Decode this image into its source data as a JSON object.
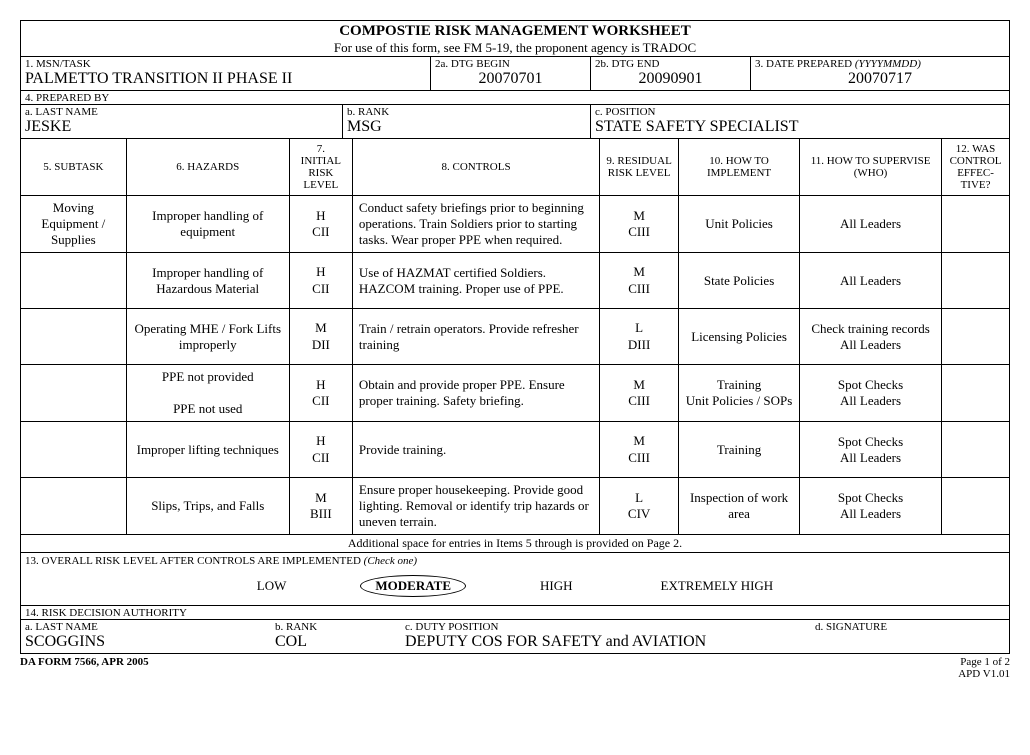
{
  "title": "COMPOSTIE RISK MANAGEMENT WORKSHEET",
  "subtitle": "For use of this form, see FM 5-19, the proponent agency is TRADOC",
  "fields": {
    "msn_label": "1. MSN/TASK",
    "msn_value": "PALMETTO TRANSITION II  PHASE II",
    "dtg_begin_label": "2a. DTG BEGIN",
    "dtg_begin_value": "20070701",
    "dtg_end_label": "2b. DTG END",
    "dtg_end_value": "20090901",
    "date_prep_label": "3. DATE PREPARED ",
    "date_prep_hint": "(YYYYMMDD)",
    "date_prep_value": "20070717",
    "prepared_by_label": "4. PREPARED BY",
    "last_name_label": "a. LAST NAME",
    "last_name_value": "JESKE",
    "rank_label": "b. RANK",
    "rank_value": "MSG",
    "position_label": "c. POSITION",
    "position_value": "STATE SAFETY SPECIALIST"
  },
  "columns": {
    "c5": "5. SUBTASK",
    "c6": "6. HAZARDS",
    "c7": "7. INITIAL RISK LEVEL",
    "c8": "8. CONTROLS",
    "c9": "9. RESIDUAL RISK LEVEL",
    "c10": "10. HOW TO IMPLEMENT",
    "c11": "11. HOW TO SUPERVISE (WHO)",
    "c12": "12. WAS CONTROL EFFEC-TIVE?"
  },
  "rows": [
    {
      "subtask": "Moving Equipment / Supplies",
      "hazard": "Improper handling of equipment",
      "initial_a": "H",
      "initial_b": "CII",
      "controls": "Conduct safety briefings prior to beginning operations.   Train Soldiers prior to starting tasks.  Wear proper PPE when required.",
      "residual_a": "M",
      "residual_b": "CIII",
      "implement": "Unit Policies",
      "supervise": "All Leaders",
      "effective": ""
    },
    {
      "subtask": "",
      "hazard": "Improper handling of Hazardous Material",
      "initial_a": "H",
      "initial_b": "CII",
      "controls": "Use of HAZMAT certified Soldiers.  HAZCOM training.  Proper use of PPE.",
      "residual_a": "M",
      "residual_b": "CIII",
      "implement": "State Policies",
      "supervise": "All Leaders",
      "effective": ""
    },
    {
      "subtask": "",
      "hazard": "Operating MHE / Fork Lifts improperly",
      "initial_a": "M",
      "initial_b": "DII",
      "controls": "Train / retrain operators.  Provide refresher training",
      "residual_a": "L",
      "residual_b": "DIII",
      "implement": "Licensing Policies",
      "supervise": "Check training records All Leaders",
      "effective": ""
    },
    {
      "subtask": "",
      "hazard": "PPE not provided\n\nPPE not used",
      "initial_a": "H",
      "initial_b": "CII",
      "controls": "Obtain and provide proper PPE.  Ensure proper training.  Safety briefing.",
      "residual_a": "M",
      "residual_b": "CIII",
      "implement": "Training\nUnit Policies / SOPs",
      "supervise": "Spot Checks\nAll Leaders",
      "effective": ""
    },
    {
      "subtask": "",
      "hazard": "Improper lifting techniques",
      "initial_a": "H",
      "initial_b": "CII",
      "controls": "Provide training.",
      "residual_a": "M",
      "residual_b": "CIII",
      "implement": "Training",
      "supervise": "Spot Checks\nAll Leaders",
      "effective": ""
    },
    {
      "subtask": "",
      "hazard": "Slips, Trips, and Falls",
      "initial_a": "M",
      "initial_b": "BIII",
      "controls": "Ensure proper housekeeping.  Provide good lighting.  Removal or identify trip hazards or uneven terrain.",
      "residual_a": "L",
      "residual_b": "CIV",
      "implement": "Inspection of work area",
      "supervise": "Spot Checks\nAll Leaders",
      "effective": ""
    }
  ],
  "note": "Additional space for entries in Items 5 through is provided on Page 2.",
  "section13": {
    "label": "13.  OVERALL RISK LEVEL AFTER CONTROLS ARE IMPLEMENTED ",
    "hint": "(Check one)",
    "options": [
      "LOW",
      "MODERATE",
      "HIGH",
      "EXTREMELY HIGH"
    ],
    "selected": "MODERATE"
  },
  "section14": {
    "label": "14.  RISK DECISION AUTHORITY",
    "last_label": "a. LAST NAME",
    "last_value": "SCOGGINS",
    "rank_label": "b.  RANK",
    "rank_value": "COL",
    "duty_label": "c.  DUTY POSITION",
    "duty_value": "DEPUTY COS FOR SAFETY and AVIATION",
    "sig_label": "d.  SIGNATURE",
    "sig_value": ""
  },
  "footer": {
    "form": "DA FORM 7566, APR 2005",
    "page": "Page 1 of 2",
    "ver": "APD V1.01"
  }
}
